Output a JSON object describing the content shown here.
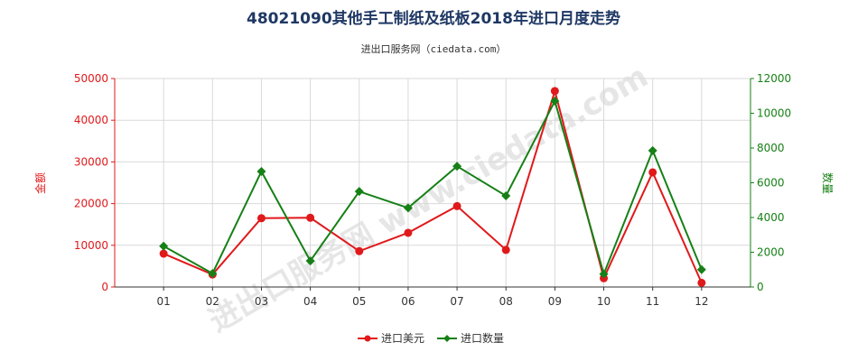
{
  "chart_data": {
    "type": "line",
    "title": "48021090其他手工制纸及纸板2018年进口月度走势",
    "subtitle": "进出口服务网（ciedata.com）",
    "watermark": "进出口服务网 www.ciedata.com",
    "categories": [
      "01",
      "02",
      "03",
      "04",
      "05",
      "06",
      "07",
      "08",
      "09",
      "10",
      "11",
      "12"
    ],
    "y_left": {
      "label": "金额",
      "ylim": [
        0,
        50000
      ],
      "ticks": [
        "0",
        "10000",
        "20000",
        "30000",
        "40000",
        "50000"
      ],
      "color": "#e0191b"
    },
    "y_right": {
      "label": "数量",
      "ylim": [
        0,
        12000
      ],
      "ticks": [
        "0",
        "2000",
        "4000",
        "6000",
        "8000",
        "10000",
        "12000"
      ],
      "color": "#168016"
    },
    "grid": true,
    "legend_position": "bottom",
    "series": [
      {
        "name": "进口美元",
        "axis": "left",
        "color": "#e0191b",
        "marker": "circle",
        "values": [
          8000,
          3000,
          16500,
          16600,
          8600,
          13000,
          19400,
          8900,
          47000,
          2100,
          27500,
          1000
        ]
      },
      {
        "name": "进口数量",
        "axis": "right",
        "color": "#168016",
        "marker": "diamond",
        "values": [
          2350,
          780,
          6650,
          1500,
          5500,
          4550,
          6950,
          5250,
          10700,
          750,
          7850,
          1000
        ]
      }
    ]
  }
}
